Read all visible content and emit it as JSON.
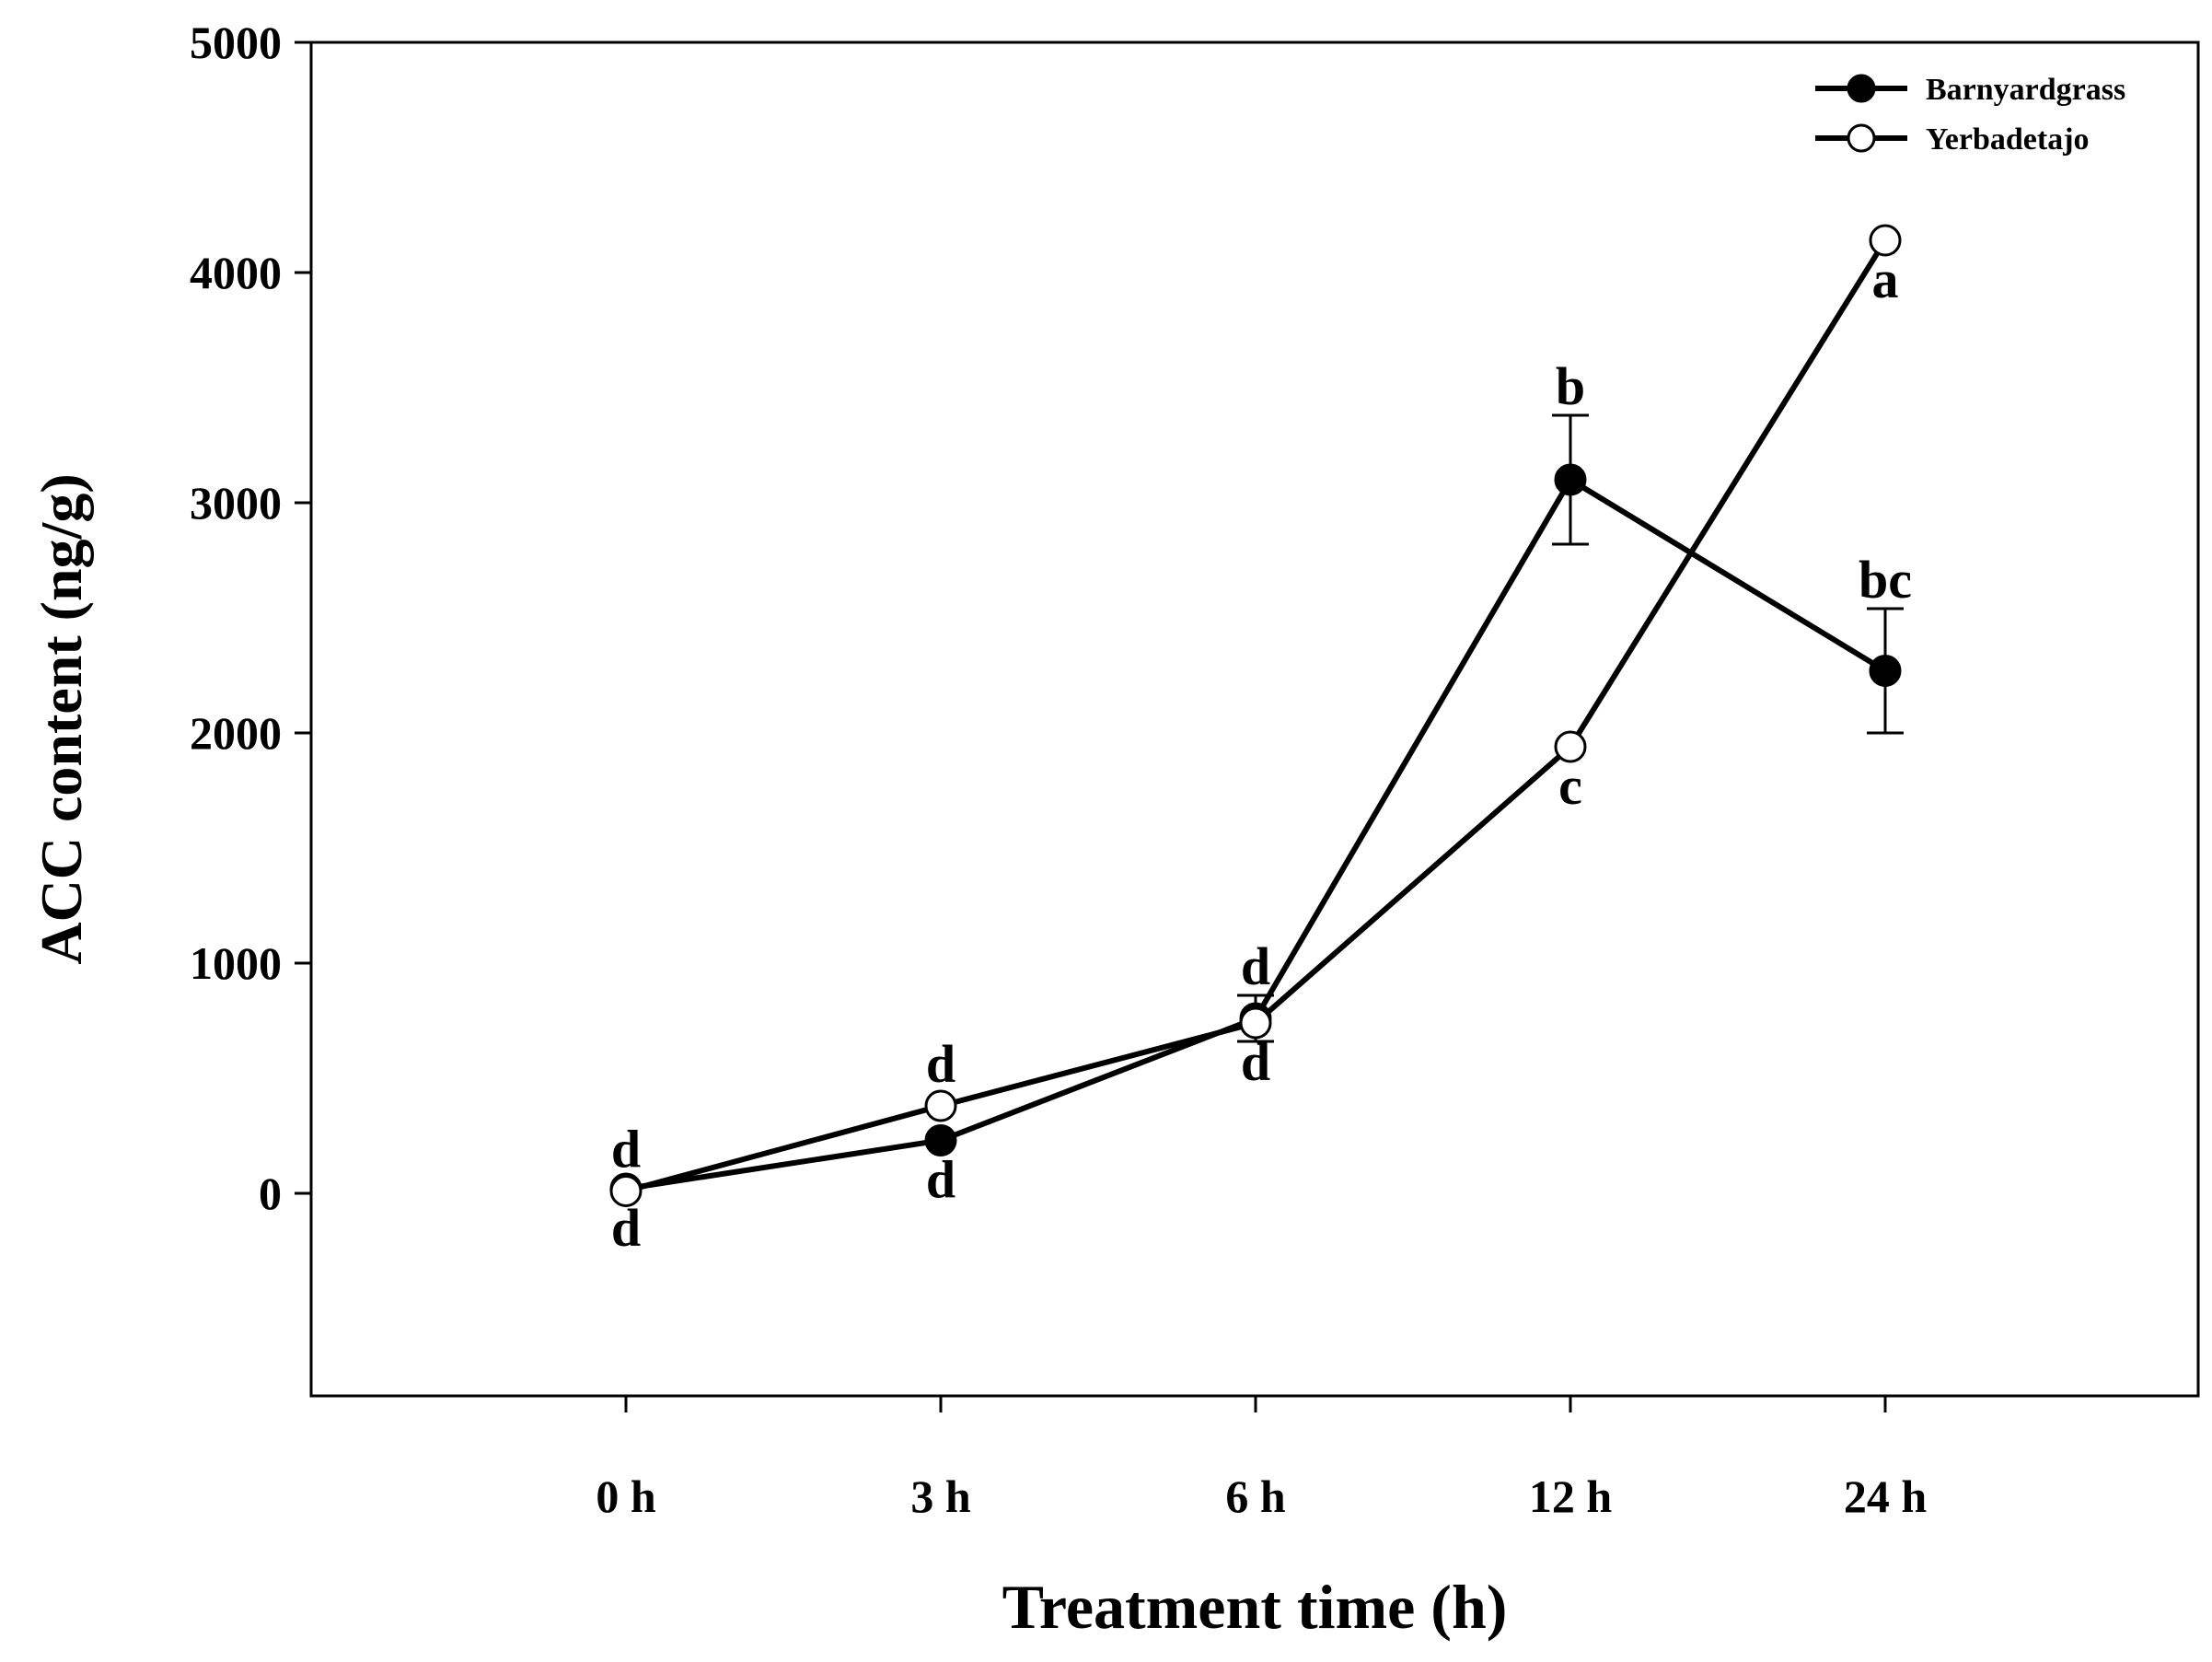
{
  "chart_data": {
    "type": "line",
    "title": "",
    "xlabel": "Treatment time (h)",
    "ylabel": "ACC content (ng/g)",
    "categories": [
      "0 h",
      "3 h",
      "6 h",
      "12 h",
      "24 h"
    ],
    "ylim": [
      -900,
      5000
    ],
    "yticks": [
      0,
      1000,
      2000,
      3000,
      4000,
      5000
    ],
    "legend_position": "top-right",
    "grid": false,
    "series": [
      {
        "name": "Barnyardgrass",
        "marker": "filled-circle",
        "values": [
          20,
          230,
          760,
          3100,
          2270
        ],
        "errors": [
          0,
          0,
          100,
          280,
          270
        ],
        "significance": [
          "d",
          "d",
          "d",
          "b",
          "bc"
        ],
        "label_side": [
          "below",
          "below",
          "above",
          "above",
          "above"
        ]
      },
      {
        "name": "Yerbadetajo",
        "marker": "open-circle",
        "values": [
          10,
          380,
          740,
          1940,
          4140
        ],
        "errors": [
          0,
          0,
          0,
          0,
          0
        ],
        "significance": [
          "d",
          "d",
          "d",
          "c",
          "a"
        ],
        "label_side": [
          "above",
          "above",
          "below",
          "below",
          "below"
        ]
      }
    ]
  }
}
